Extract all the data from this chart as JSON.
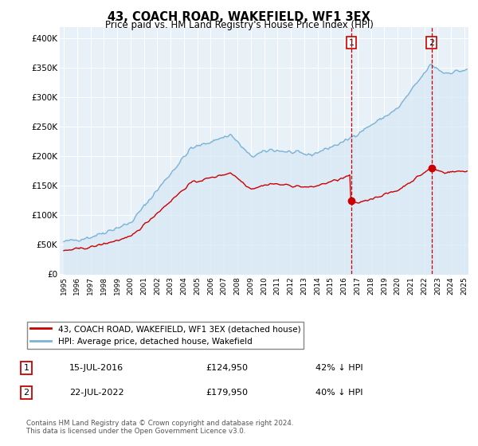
{
  "title": "43, COACH ROAD, WAKEFIELD, WF1 3EX",
  "subtitle": "Price paid vs. HM Land Registry's House Price Index (HPI)",
  "ylim": [
    0,
    420000
  ],
  "yticks": [
    0,
    50000,
    100000,
    150000,
    200000,
    250000,
    300000,
    350000,
    400000
  ],
  "ytick_labels": [
    "£0",
    "£50K",
    "£100K",
    "£150K",
    "£200K",
    "£250K",
    "£300K",
    "£350K",
    "£400K"
  ],
  "hpi_color": "#7ab3d4",
  "hpi_fill_color": "#d6e8f5",
  "price_color": "#cc0000",
  "t1_year": 2016.54,
  "t2_year": 2022.54,
  "t1_price": 124950,
  "t2_price": 179950,
  "transaction1": {
    "date": "15-JUL-2016",
    "price": "£124,950",
    "pct": "42% ↓ HPI",
    "label": "1"
  },
  "transaction2": {
    "date": "22-JUL-2022",
    "price": "£179,950",
    "pct": "40% ↓ HPI",
    "label": "2"
  },
  "footer": "Contains HM Land Registry data © Crown copyright and database right 2024.\nThis data is licensed under the Open Government Licence v3.0.",
  "legend_house": "43, COACH ROAD, WAKEFIELD, WF1 3EX (detached house)",
  "legend_hpi": "HPI: Average price, detached house, Wakefield",
  "background_color": "#e8f0f8",
  "xlim_start": 1994.7,
  "xlim_end": 2025.3
}
